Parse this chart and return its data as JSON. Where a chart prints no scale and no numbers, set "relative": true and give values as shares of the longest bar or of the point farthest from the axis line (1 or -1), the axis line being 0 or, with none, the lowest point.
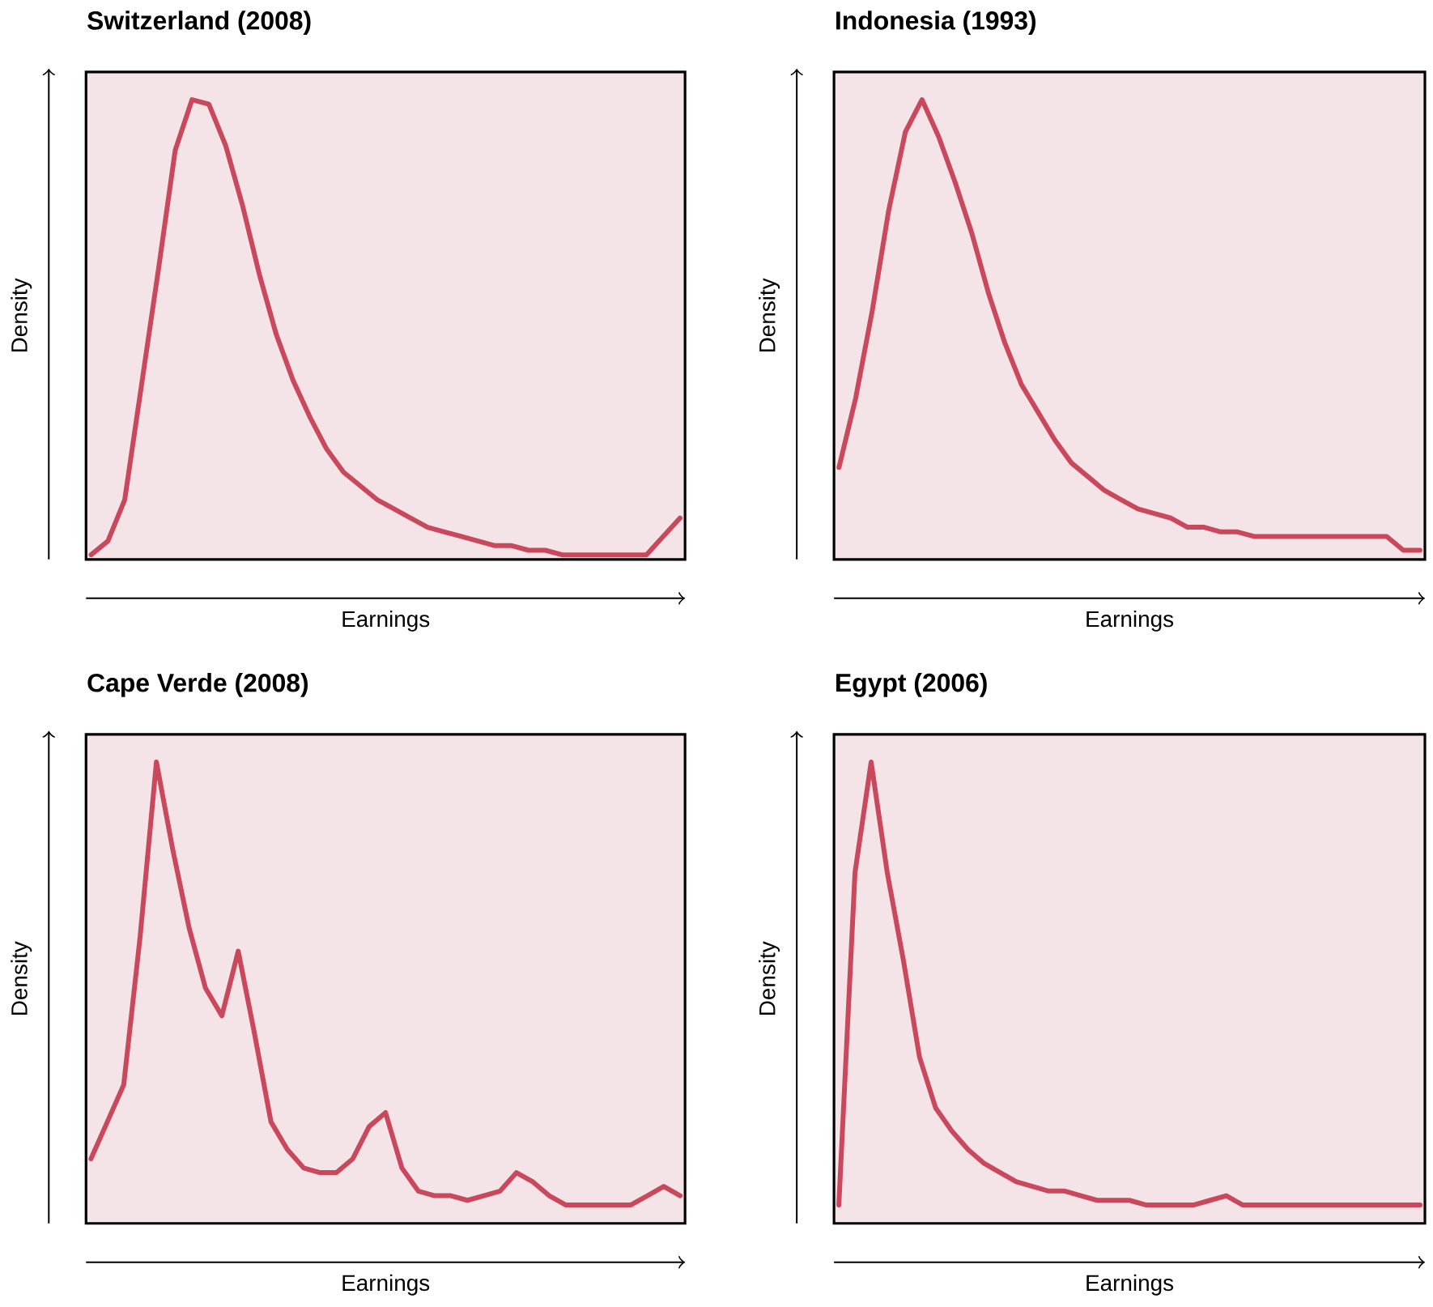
{
  "chart_data": [
    {
      "type": "line",
      "title": "Switzerland (2008)",
      "xlabel": "Earnings",
      "ylabel": "Density",
      "relative": true,
      "tick_labels": false,
      "categories": [
        null,
        null,
        null,
        null,
        null,
        null,
        null,
        null,
        null,
        null,
        null,
        null,
        null,
        null,
        null,
        null,
        null,
        null,
        null,
        null,
        null,
        null,
        null,
        null,
        null,
        null,
        null,
        null,
        null,
        null,
        null,
        null,
        null,
        null,
        null,
        null
      ],
      "series": [
        {
          "color": "#c9485b",
          "values": [
            0.01,
            0.04,
            0.13,
            0.38,
            0.63,
            0.89,
            1.0,
            0.99,
            0.9,
            0.77,
            0.62,
            0.49,
            0.39,
            0.31,
            0.24,
            0.19,
            0.16,
            0.13,
            0.11,
            0.09,
            0.07,
            0.06,
            0.05,
            0.04,
            0.03,
            0.03,
            0.02,
            0.02,
            0.01,
            0.01,
            0.01,
            0.01,
            0.01,
            0.01,
            0.05,
            0.09
          ]
        }
      ]
    },
    {
      "type": "line",
      "title": "Indonesia (1993)",
      "xlabel": "Earnings",
      "ylabel": "Density",
      "relative": true,
      "tick_labels": false,
      "categories": [
        null,
        null,
        null,
        null,
        null,
        null,
        null,
        null,
        null,
        null,
        null,
        null,
        null,
        null,
        null,
        null,
        null,
        null,
        null,
        null,
        null,
        null,
        null,
        null,
        null,
        null,
        null,
        null,
        null,
        null,
        null,
        null,
        null,
        null,
        null,
        null
      ],
      "series": [
        {
          "color": "#c9485b",
          "values": [
            0.2,
            0.35,
            0.54,
            0.76,
            0.93,
            1.0,
            0.92,
            0.82,
            0.71,
            0.58,
            0.47,
            0.38,
            0.32,
            0.26,
            0.21,
            0.18,
            0.15,
            0.13,
            0.11,
            0.1,
            0.09,
            0.07,
            0.07,
            0.06,
            0.06,
            0.05,
            0.05,
            0.05,
            0.05,
            0.05,
            0.05,
            0.05,
            0.05,
            0.05,
            0.02,
            0.02
          ]
        }
      ]
    },
    {
      "type": "line",
      "title": "Cape Verde (2008)",
      "xlabel": "Earnings",
      "ylabel": "Density",
      "relative": true,
      "tick_labels": false,
      "categories": [
        null,
        null,
        null,
        null,
        null,
        null,
        null,
        null,
        null,
        null,
        null,
        null,
        null,
        null,
        null,
        null,
        null,
        null,
        null,
        null,
        null,
        null,
        null,
        null,
        null,
        null,
        null,
        null,
        null,
        null,
        null,
        null,
        null,
        null,
        null,
        null,
        null
      ],
      "series": [
        {
          "color": "#c9485b",
          "values": [
            0.14,
            0.22,
            0.3,
            0.62,
            1.0,
            0.81,
            0.64,
            0.51,
            0.45,
            0.59,
            0.41,
            0.22,
            0.16,
            0.12,
            0.11,
            0.11,
            0.14,
            0.21,
            0.24,
            0.12,
            0.07,
            0.06,
            0.06,
            0.05,
            0.06,
            0.07,
            0.11,
            0.09,
            0.06,
            0.04,
            0.04,
            0.04,
            0.04,
            0.04,
            0.06,
            0.08,
            0.06
          ]
        }
      ]
    },
    {
      "type": "line",
      "title": "Egypt (2006)",
      "xlabel": "Earnings",
      "ylabel": "Density",
      "relative": true,
      "tick_labels": false,
      "categories": [
        null,
        null,
        null,
        null,
        null,
        null,
        null,
        null,
        null,
        null,
        null,
        null,
        null,
        null,
        null,
        null,
        null,
        null,
        null,
        null,
        null,
        null,
        null,
        null,
        null,
        null,
        null,
        null,
        null,
        null,
        null,
        null,
        null,
        null,
        null,
        null,
        null
      ],
      "series": [
        {
          "color": "#c9485b",
          "values": [
            0.04,
            0.76,
            1.0,
            0.76,
            0.57,
            0.36,
            0.25,
            0.2,
            0.16,
            0.13,
            0.11,
            0.09,
            0.08,
            0.07,
            0.07,
            0.06,
            0.05,
            0.05,
            0.05,
            0.04,
            0.04,
            0.04,
            0.04,
            0.05,
            0.06,
            0.04,
            0.04,
            0.04,
            0.04,
            0.04,
            0.04,
            0.04,
            0.04,
            0.04,
            0.04,
            0.04,
            0.04
          ]
        }
      ]
    }
  ]
}
